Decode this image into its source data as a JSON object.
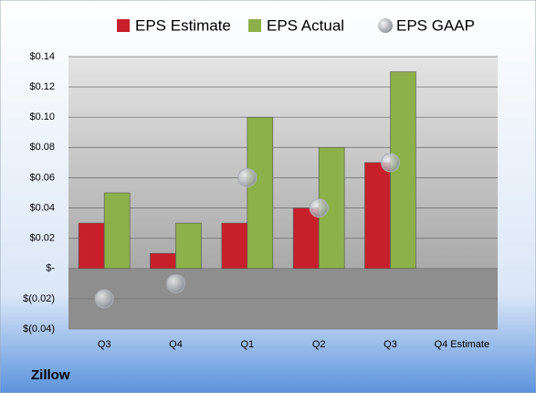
{
  "chart_data": {
    "type": "bar",
    "title": "Zillow",
    "categories": [
      "Q3",
      "Q4",
      "Q1",
      "Q2",
      "Q3",
      "Q4 Estimate"
    ],
    "series": [
      {
        "name": "EPS Estimate",
        "color": "#c8202a",
        "values": [
          0.03,
          0.01,
          0.03,
          0.04,
          0.07,
          null
        ]
      },
      {
        "name": "EPS Actual",
        "color": "#8cb04a",
        "values": [
          0.05,
          0.03,
          0.1,
          0.08,
          0.13,
          null
        ]
      },
      {
        "name": "EPS GAAP",
        "color": "#a9aeb6",
        "type": "scatter",
        "values": [
          -0.02,
          -0.01,
          0.06,
          0.04,
          0.07,
          null
        ]
      }
    ],
    "ylim": [
      -0.04,
      0.14
    ],
    "yticks": [
      {
        "value": -0.04,
        "label": "$(0.04)"
      },
      {
        "value": -0.02,
        "label": "$(0.02)"
      },
      {
        "value": 0,
        "label": "$-"
      },
      {
        "value": 0.02,
        "label": "$0.02"
      },
      {
        "value": 0.04,
        "label": "$0.04"
      },
      {
        "value": 0.06,
        "label": "$0.06"
      },
      {
        "value": 0.08,
        "label": "$0.08"
      },
      {
        "value": 0.1,
        "label": "$0.10"
      },
      {
        "value": 0.12,
        "label": "$0.12"
      },
      {
        "value": 0.14,
        "label": "$0.14"
      }
    ],
    "grid": true
  }
}
